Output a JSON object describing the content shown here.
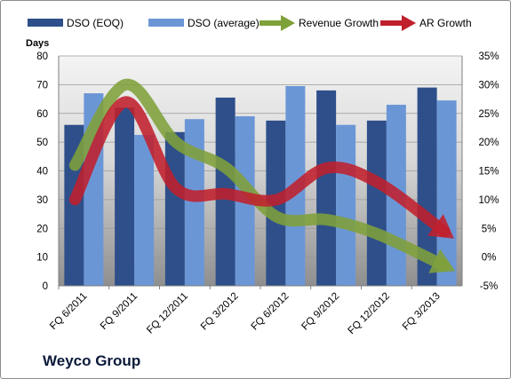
{
  "company": "Weyco Group",
  "chart_data": {
    "type": "bar",
    "ylabel_left": "Days",
    "categories": [
      "FQ 6/2011",
      "FQ 9/2011",
      "FQ 12/2011",
      "FQ 3/2012",
      "FQ 6/2012",
      "FQ 9/2012",
      "FQ 12/2012",
      "FQ 3/2013"
    ],
    "ylim_left": [
      0,
      80
    ],
    "yticks_left": [
      "0",
      "10",
      "20",
      "30",
      "40",
      "50",
      "60",
      "70",
      "80"
    ],
    "ylim_right": [
      -5,
      35
    ],
    "yticks_right": [
      "-5%",
      "0%",
      "5%",
      "10%",
      "15%",
      "20%",
      "25%",
      "30%",
      "35%"
    ],
    "series": [
      {
        "name": "DSO (EOQ)",
        "kind": "bar",
        "axis": "left",
        "color": "#2e4f8a",
        "values": [
          56,
          62,
          53.5,
          65.5,
          57.5,
          68,
          57.5,
          69
        ]
      },
      {
        "name": "DSO (average)",
        "kind": "bar",
        "axis": "left",
        "color": "#6b96d6",
        "values": [
          67,
          52.5,
          58,
          59,
          69.5,
          56,
          63,
          64.5
        ]
      },
      {
        "name": "Revenue Growth",
        "kind": "arrow-line",
        "axis": "right",
        "color": "#7fa13a",
        "values": [
          16,
          30,
          20,
          15.5,
          7,
          6.5,
          4,
          -1.5
        ]
      },
      {
        "name": "AR Growth",
        "kind": "arrow-line",
        "axis": "right",
        "color": "#c0202c",
        "values": [
          10,
          27,
          12,
          11,
          10,
          15.5,
          13,
          4.5
        ]
      }
    ],
    "legend_position": "top",
    "grid": true
  }
}
